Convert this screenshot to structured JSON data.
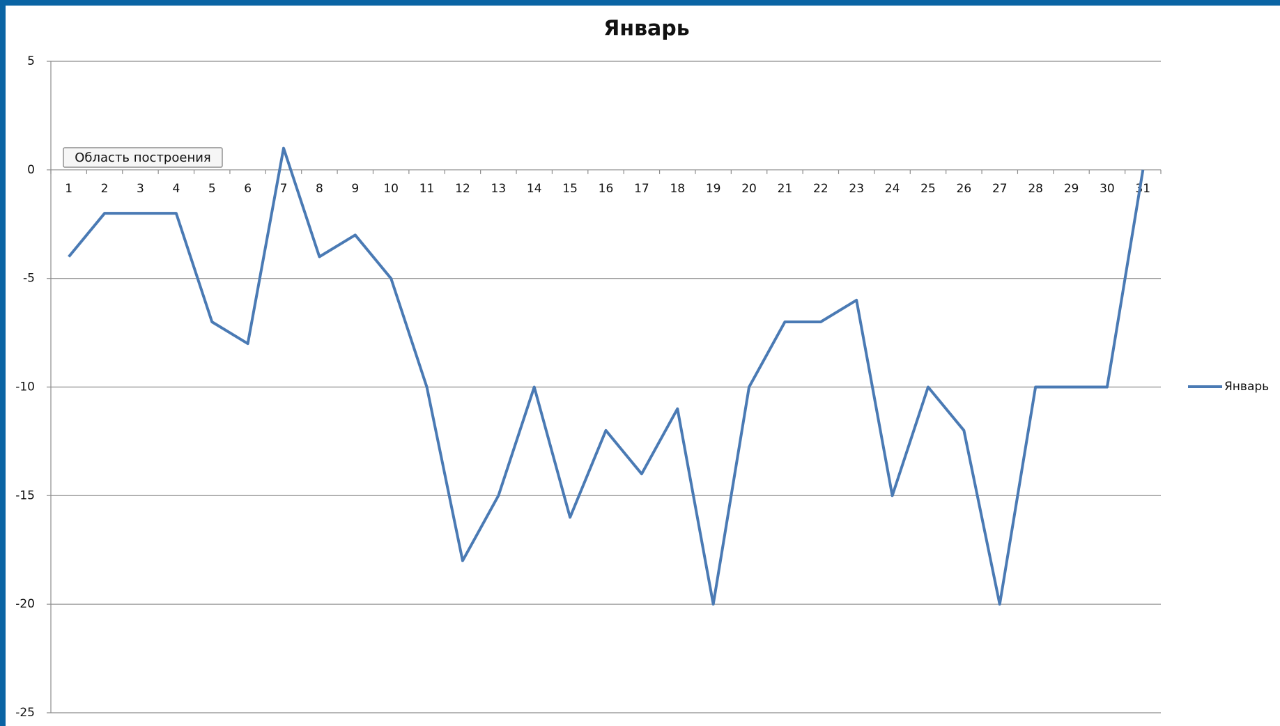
{
  "chart_data": {
    "type": "line",
    "title": "Январь",
    "categories": [
      "1",
      "2",
      "3",
      "4",
      "5",
      "6",
      "7",
      "8",
      "9",
      "10",
      "11",
      "12",
      "13",
      "14",
      "15",
      "16",
      "17",
      "18",
      "19",
      "20",
      "21",
      "22",
      "23",
      "24",
      "25",
      "26",
      "27",
      "28",
      "29",
      "30",
      "31"
    ],
    "series": [
      {
        "name": "Январь",
        "color": "#4a7ab4",
        "values": [
          -4,
          -2,
          -2,
          -2,
          -7,
          -8,
          1,
          -4,
          -3,
          -5,
          -10,
          -18,
          -15,
          -10,
          -16,
          -12,
          -14,
          -11,
          -20,
          -10,
          -7,
          -7,
          -6,
          -15,
          -10,
          -12,
          -20,
          -10,
          -10,
          -10,
          0
        ]
      }
    ],
    "ylim": [
      -25,
      5
    ],
    "yticks": [
      -25,
      -20,
      -15,
      -10,
      -5,
      0,
      5
    ],
    "grid": true,
    "legend": "right",
    "tooltip": "Область построения"
  }
}
